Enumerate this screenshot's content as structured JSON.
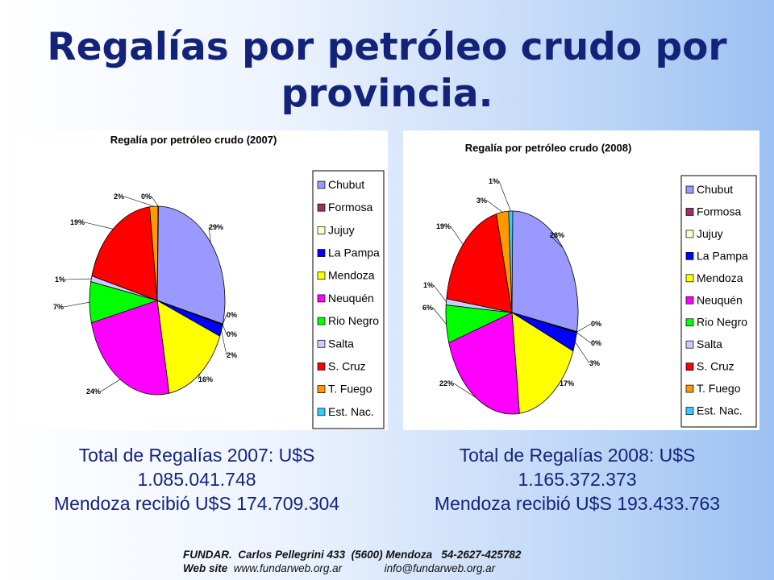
{
  "slide": {
    "title": "Regalías por petróleo crudo por provincia."
  },
  "totals_2007": {
    "line1": "Total de Regalías 2007: U$S",
    "line2": "1.085.041.748",
    "line3": "Mendoza recibió U$S 174.709.304"
  },
  "totals_2008": {
    "line1": "Total de Regalías 2008: U$S",
    "line2": "1.165.372.373",
    "line3": "Mendoza recibió U$S 193.433.763"
  },
  "footer": {
    "org": "FUNDAR.",
    "address": "Carlos Pellegrini 433  (5600) Mendoza   54-2627-425782",
    "web_label": "Web site",
    "web_url": "www.fundarweb.org.ar",
    "email": "info@fundarweb.org.ar"
  },
  "chart_data": [
    {
      "type": "pie",
      "title": "Regalía por petróleo crudo (2007)",
      "categories": [
        "Chubut",
        "Formosa",
        "Jujuy",
        "La Pampa",
        "Mendoza",
        "Neuquén",
        "Rio Negro",
        "Salta",
        "S. Cruz",
        "T. Fuego",
        "Est. Nac."
      ],
      "values": [
        29,
        0,
        0,
        2,
        16,
        24,
        7,
        1,
        19,
        2,
        0
      ],
      "labels": [
        "29%",
        "0%",
        "0%",
        "2%",
        "16%",
        "24%",
        "7%",
        "1%",
        "19%",
        "2%",
        "0%"
      ],
      "colors": [
        "#9999ff",
        "#993366",
        "#ffffcc",
        "#0000ff",
        "#ffff00",
        "#ff00ff",
        "#00ff00",
        "#ccccff",
        "#ff0000",
        "#ff9900",
        "#33ccff"
      ],
      "legend": "right"
    },
    {
      "type": "pie",
      "title": "Regalía por petróleo crudo (2008)",
      "categories": [
        "Chubut",
        "Formosa",
        "Jujuy",
        "La Pampa",
        "Mendoza",
        "Neuquén",
        "Rio Negro",
        "Salta",
        "S. Cruz",
        "T. Fuego",
        "Est. Nac."
      ],
      "values": [
        28,
        0,
        0,
        3,
        17,
        22,
        6,
        1,
        19,
        3,
        1
      ],
      "labels": [
        "28%",
        "0%",
        "0%",
        "3%",
        "17%",
        "22%",
        "6%",
        "1%",
        "19%",
        "3%",
        "1%"
      ],
      "colors": [
        "#9999ff",
        "#993366",
        "#ffffcc",
        "#0000ff",
        "#ffff00",
        "#ff00ff",
        "#00ff00",
        "#ccccff",
        "#ff0000",
        "#ff9900",
        "#33ccff"
      ],
      "legend": "right"
    }
  ]
}
